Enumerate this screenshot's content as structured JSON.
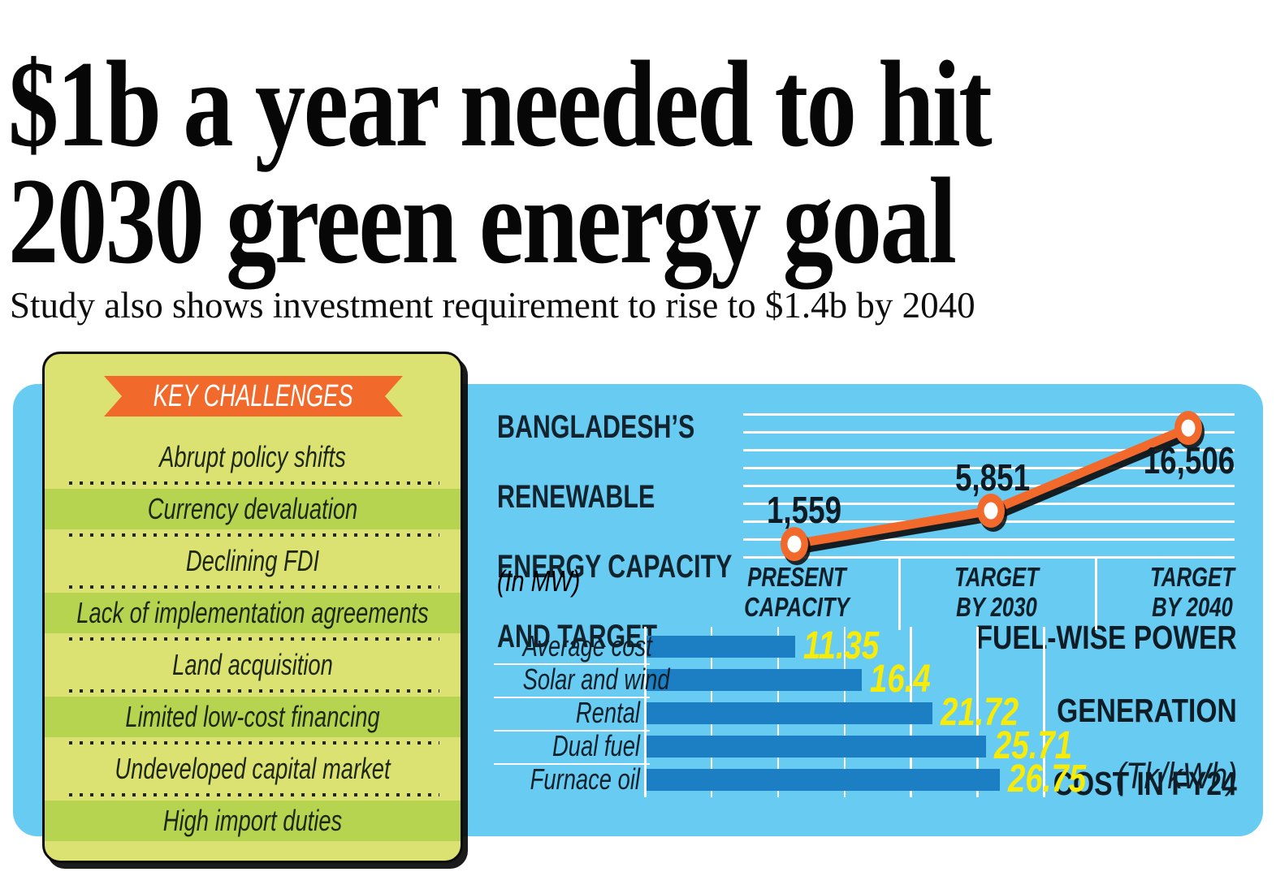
{
  "headline": {
    "line1": "$1b a year needed to hit",
    "line2": "2030 green energy goal"
  },
  "subtitle": "Study also shows investment requirement to rise to $1.4b by 2040",
  "key_challenges": {
    "ribbon_label": "KEY CHALLENGES",
    "items": [
      "Abrupt policy shifts",
      "Currency devaluation",
      "Declining FDI",
      "Lack of implementation agreements",
      "Land acquisition",
      "Limited low-cost financing",
      "Undeveloped capital market",
      "High import duties"
    ]
  },
  "chart_data": [
    {
      "type": "line",
      "title": "BANGLADESH'S RENEWABLE ENERGY CAPACITY AND TARGET",
      "title_lines": [
        "BANGLADESH’S",
        "RENEWABLE",
        "ENERGY CAPACITY",
        "AND TARGET"
      ],
      "unit_label": "(In MW)",
      "categories": [
        "PRESENT\nCAPACITY",
        "TARGET\nBY 2030",
        "TARGET\nBY 2040"
      ],
      "values": [
        1559,
        5851,
        16506
      ],
      "value_labels": [
        "1,559",
        "5,851",
        "16,506"
      ],
      "ylim": [
        0,
        18400
      ],
      "gridlines": 9,
      "grid": "horizontal-white-unlabeled",
      "legend": "none",
      "line_color": "#f2692c",
      "marker": "orange-ring-white-center"
    },
    {
      "type": "bar",
      "orientation": "horizontal",
      "title": "FUEL-WISE POWER GENERATION COST IN FY24",
      "title_lines": [
        "FUEL-WISE POWER",
        "GENERATION",
        "COST IN FY24"
      ],
      "unit_label": "(Tk/kWh)",
      "categories": [
        "Average cost",
        "Solar and wind",
        "Rental",
        "Dual fuel",
        "Furnace oil"
      ],
      "values": [
        11.35,
        16.4,
        21.72,
        25.71,
        26.75
      ],
      "value_labels": [
        "11.35",
        "16.4",
        "21.72",
        "25.71",
        "26.75"
      ],
      "xlim": [
        0,
        30
      ],
      "grid_step": 5,
      "grid": "vertical-white-unlabeled",
      "legend": "none",
      "bar_color": "#1c7fc3",
      "value_label_color": "#f8ec07"
    }
  ],
  "colors": {
    "panel_blue": "#67cbf2",
    "card_light_green": "#dbe272",
    "card_dark_green": "#b7d450",
    "ribbon_orange": "#f2692c",
    "bar_blue": "#1c7fc3",
    "value_yellow": "#f8ec07",
    "headline_black": "#070707",
    "grid_white": "#ffffff"
  }
}
